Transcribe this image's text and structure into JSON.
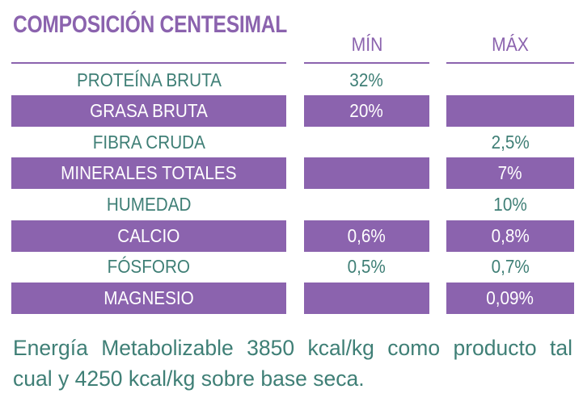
{
  "title": "COMPOSICIÓN CENTESIMAL",
  "columns": {
    "min": "MÍN",
    "max": "MÁX"
  },
  "rows": [
    {
      "label": "PROTEÍNA BRUTA",
      "min": "32%",
      "max": ""
    },
    {
      "label": "GRASA BRUTA",
      "min": "20%",
      "max": ""
    },
    {
      "label": "FIBRA CRUDA",
      "min": "",
      "max": "2,5%"
    },
    {
      "label": "MINERALES TOTALES",
      "min": "",
      "max": "7%"
    },
    {
      "label": "HUMEDAD",
      "min": "",
      "max": "10%"
    },
    {
      "label": "CALCIO",
      "min": "0,6%",
      "max": "0,8%"
    },
    {
      "label": "FÓSFORO",
      "min": "0,5%",
      "max": "0,7%"
    },
    {
      "label": "MAGNESIO",
      "min": "",
      "max": "0,09%"
    }
  ],
  "energy_note": "Energía Metabolizable 3850 kcal/kg como producto tal cual y 4250 kcal/kg sobre base seca.",
  "colors": {
    "accent": "#8b63ae",
    "text": "#3f7f76"
  }
}
